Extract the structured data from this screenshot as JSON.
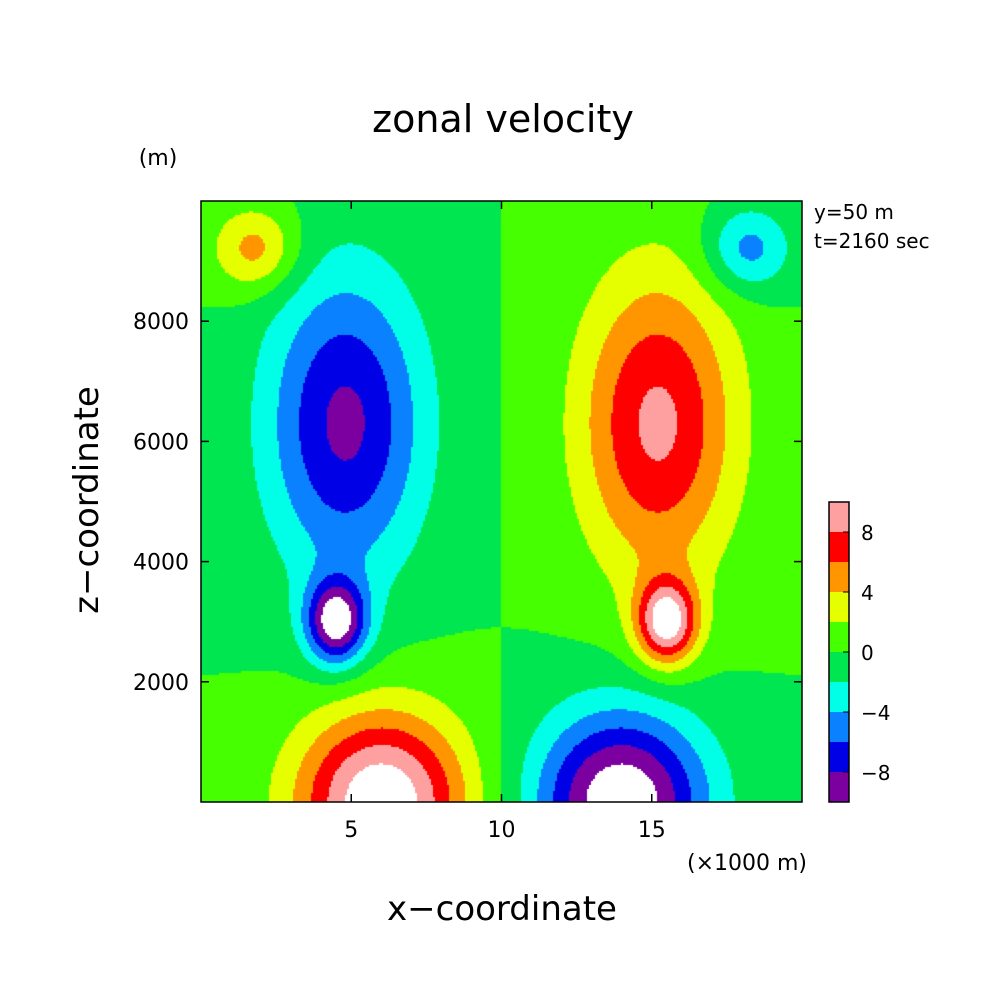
{
  "chart_data": {
    "type": "heatmap",
    "title": "zonal velocity",
    "xlabel": "x−coordinate",
    "ylabel": "z−coordinate",
    "x_unit": "(×1000 m)",
    "y_unit": "(m)",
    "annotations": [
      "y=50  m",
      "t=2160 sec"
    ],
    "xlim": [
      0,
      20
    ],
    "ylim": [
      0,
      10000
    ],
    "xticks": [
      5,
      10,
      15
    ],
    "yticks": [
      2000,
      4000,
      6000,
      8000
    ],
    "xtick_labels": [
      "5",
      "10",
      "15"
    ],
    "ytick_labels": [
      "2000",
      "4000",
      "6000",
      "8000"
    ],
    "grid": false,
    "colorbar": {
      "position": "right",
      "levels": [
        -10,
        -8,
        -6,
        -4,
        -2,
        0,
        2,
        4,
        6,
        8,
        10
      ],
      "colors": [
        "#7c00a0",
        "#0000e6",
        "#0a82ff",
        "#00ffe6",
        "#00e650",
        "#46ff00",
        "#e6ff00",
        "#ff9600",
        "#ff0000",
        "#ffa0a0"
      ],
      "tick_values": [
        -8,
        -4,
        0,
        4,
        8
      ],
      "tick_labels": [
        "−8",
        "−4",
        "0",
        "4",
        "8"
      ],
      "out_of_range_color": "#ffffff"
    },
    "features": [
      {
        "type": "jet",
        "x": 4.8,
        "z": 6300,
        "amplitude": -8.5
      },
      {
        "type": "jet",
        "x": 15.2,
        "z": 6300,
        "amplitude": 8.5
      },
      {
        "type": "core",
        "x": 4.5,
        "z": 3000,
        "amplitude": -11
      },
      {
        "type": "core",
        "x": 15.5,
        "z": 3000,
        "amplitude": 11
      },
      {
        "type": "surface",
        "x": 6,
        "z": 0,
        "amplitude": 12
      },
      {
        "type": "surface",
        "x": 14,
        "z": 0,
        "amplitude": -12
      },
      {
        "type": "upper",
        "x": 1.8,
        "z": 9200,
        "amplitude": 5
      },
      {
        "type": "upper",
        "x": 18.2,
        "z": 9200,
        "amplitude": -5
      }
    ]
  }
}
